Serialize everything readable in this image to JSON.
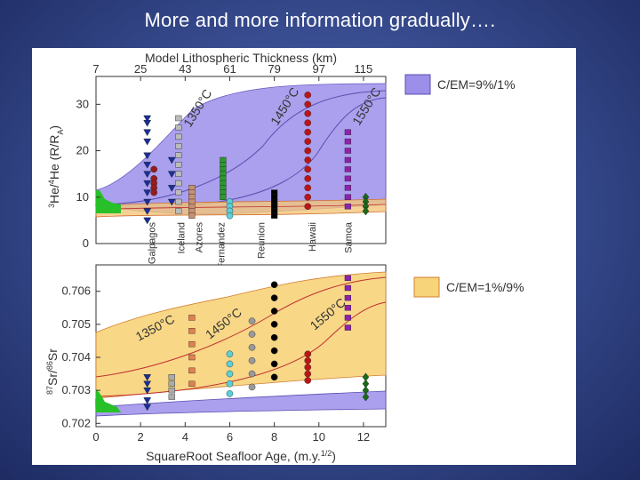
{
  "slide": {
    "title": "More and more information gradually…."
  },
  "chart_data": [
    {
      "type": "scatter",
      "panel": "top",
      "title": "",
      "top_axis_label": "Model Lithospheric Thickness (km)",
      "top_ticks": [
        "7",
        "25",
        "43",
        "61",
        "79",
        "97",
        "115"
      ],
      "ylabel_parts": {
        "sup1": "3",
        "base1": "He/",
        "sup2": "4",
        "base2": "He (R/R",
        "sub": "A",
        "close": ")"
      },
      "y_ticks": [
        "0",
        "10",
        "20",
        "30"
      ],
      "ylim": [
        0,
        36
      ],
      "xlim": [
        0,
        13
      ],
      "legend": {
        "label": "C/EM=9%/1%",
        "color": "#9b8fea",
        "position": "right"
      },
      "isotherm_labels": [
        "1350°C",
        "1450°C",
        "1550°C"
      ],
      "hotspot_labels": [
        "Galpagos",
        "Iceland",
        "Azores",
        "J. Fernandez",
        "Reunion",
        "Hawaii",
        "Samoa"
      ],
      "series": [
        {
          "name": "Galpagos",
          "color": "#1a2f9a",
          "marker": "triangle-down",
          "x": 2.3,
          "values": [
            27,
            26,
            24,
            22,
            19,
            17,
            15,
            13,
            11,
            9,
            7,
            5
          ]
        },
        {
          "name": "Galpagos-2",
          "color": "#1a2f9a",
          "marker": "triangle-down",
          "x": 3.4,
          "values": [
            18,
            15,
            12,
            9
          ]
        },
        {
          "name": "Galpagos-red",
          "color": "#9a1a1a",
          "marker": "circle",
          "x": 2.6,
          "values": [
            16,
            14,
            13,
            12,
            11
          ]
        },
        {
          "name": "Iceland",
          "color": "#bbbbbb",
          "marker": "square",
          "x": 3.7,
          "values": [
            27,
            25,
            23,
            21,
            19,
            17,
            15,
            13,
            11,
            9,
            7
          ]
        },
        {
          "name": "Azores",
          "color": "#c89070",
          "marker": "square",
          "x": 4.3,
          "values": [
            12,
            11,
            10,
            9,
            8,
            7,
            6
          ]
        },
        {
          "name": "J. Fernandez",
          "color": "#2a9a2a",
          "marker": "square",
          "x": 5.7,
          "values": [
            18,
            17,
            16,
            15,
            14,
            13,
            12,
            11,
            10
          ]
        },
        {
          "name": "J. Fernandez-cyan",
          "color": "#5ad0d8",
          "marker": "circle",
          "x": 6.0,
          "values": [
            9,
            8,
            7,
            6
          ]
        },
        {
          "name": "Reunion",
          "color": "#000000",
          "marker": "square",
          "x": 8.0,
          "values": [
            11,
            10,
            9,
            8,
            7,
            6
          ]
        },
        {
          "name": "Hawaii",
          "color": "#c01414",
          "marker": "circle",
          "x": 9.5,
          "values": [
            32,
            30,
            28,
            26,
            24,
            22,
            20,
            18,
            16,
            14,
            12,
            10,
            8
          ]
        },
        {
          "name": "Samoa",
          "color": "#9020b0",
          "marker": "square",
          "x": 11.3,
          "values": [
            24,
            22,
            20,
            18,
            16,
            14,
            12,
            10,
            8
          ]
        },
        {
          "name": "Green",
          "color": "#1a6a1a",
          "marker": "diamond",
          "x": 12.1,
          "values": [
            10,
            9,
            8,
            7
          ]
        }
      ]
    },
    {
      "type": "scatter",
      "panel": "bottom",
      "title": "",
      "xlabel_main": "SquareRoot Seafloor Age, (m.y.",
      "xlabel_sup": "1/2",
      "xlabel_close": ")",
      "x_ticks": [
        "0",
        "2",
        "4",
        "6",
        "8",
        "10",
        "12"
      ],
      "ylabel_parts": {
        "sup1": "87",
        "base1": "Sr/",
        "sup2": "86",
        "base2": "Sr"
      },
      "y_ticks": [
        "0.702",
        "0.703",
        "0.704",
        "0.705",
        "0.706"
      ],
      "ylim": [
        0.7019,
        0.7068
      ],
      "xlim": [
        0,
        13
      ],
      "legend": {
        "label": "C/EM=1%/9%",
        "color": "#f7d37a",
        "position": "right"
      },
      "isotherm_labels": [
        "1350°C",
        "1450°C",
        "1550°C"
      ],
      "series": [
        {
          "name": "Galpagos",
          "color": "#1a2f9a",
          "marker": "triangle-down",
          "x": 2.3,
          "values": [
            0.7034,
            0.7032,
            0.703,
            0.7027,
            0.7025
          ]
        },
        {
          "name": "Iceland",
          "color": "#aaaaaa",
          "marker": "square",
          "x": 3.4,
          "values": [
            0.7034,
            0.7032,
            0.703,
            0.7028
          ]
        },
        {
          "name": "Azores",
          "color": "#e08050",
          "marker": "square",
          "x": 4.3,
          "values": [
            0.7052,
            0.7048,
            0.7044,
            0.704,
            0.7036,
            0.7032
          ]
        },
        {
          "name": "J. Fernandez",
          "color": "#5ad0d8",
          "marker": "circle",
          "x": 6.0,
          "values": [
            0.7041,
            0.7038,
            0.7035,
            0.7032,
            0.7029
          ]
        },
        {
          "name": "Grey",
          "color": "#999999",
          "marker": "circle",
          "x": 7.0,
          "values": [
            0.7051,
            0.7047,
            0.7043,
            0.7039,
            0.7035,
            0.7031
          ]
        },
        {
          "name": "Reunion",
          "color": "#000000",
          "marker": "circle",
          "x": 8.0,
          "values": [
            0.7062,
            0.7058,
            0.7054,
            0.705,
            0.7046,
            0.7042,
            0.7038,
            0.7034
          ]
        },
        {
          "name": "Hawaii",
          "color": "#c01414",
          "marker": "circle",
          "x": 9.5,
          "values": [
            0.7041,
            0.7039,
            0.7037,
            0.7035,
            0.7033
          ]
        },
        {
          "name": "Samoa",
          "color": "#9020b0",
          "marker": "square",
          "x": 11.3,
          "values": [
            0.7064,
            0.7061,
            0.7058,
            0.7055,
            0.7052,
            0.7049
          ]
        },
        {
          "name": "Green",
          "color": "#1a6a1a",
          "marker": "diamond",
          "x": 12.1,
          "values": [
            0.7034,
            0.7032,
            0.703,
            0.7028
          ]
        }
      ]
    }
  ]
}
